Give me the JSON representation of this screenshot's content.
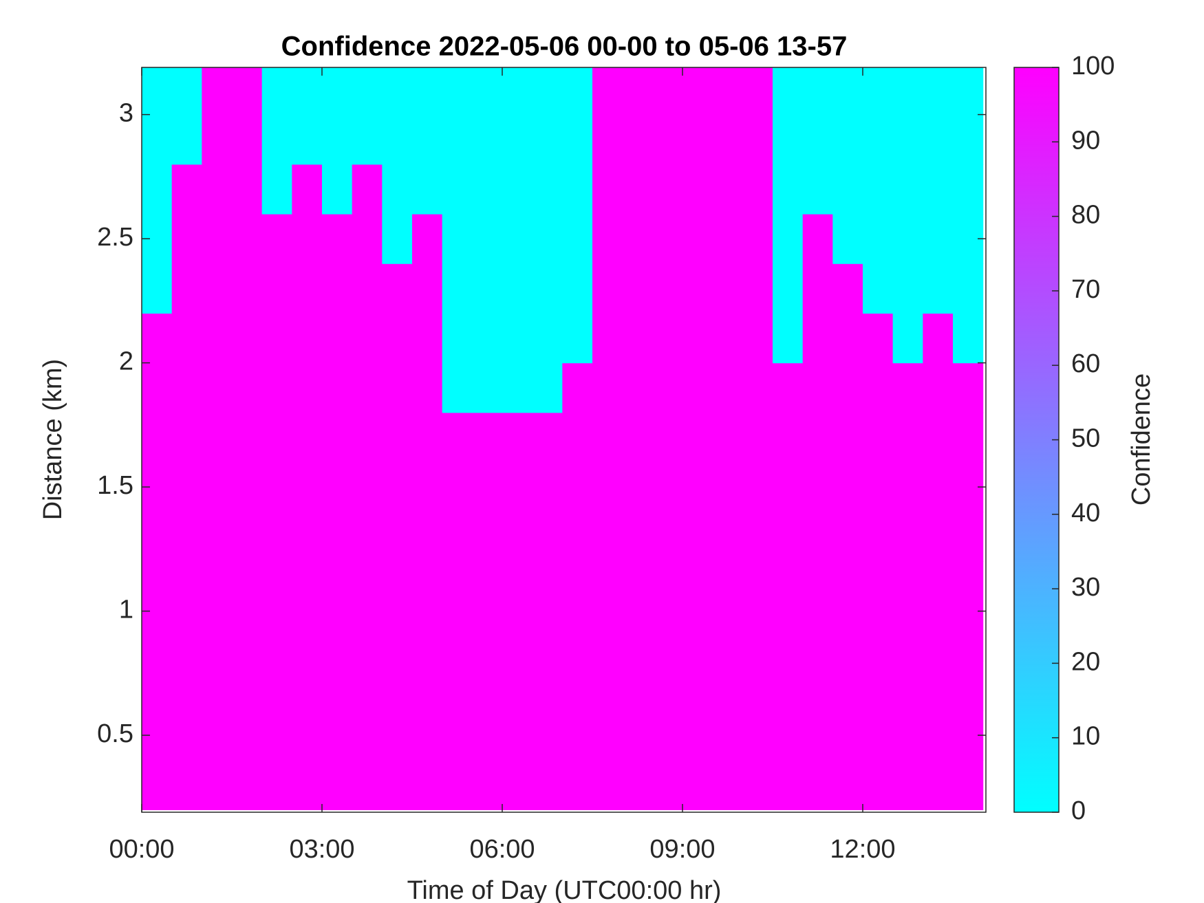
{
  "chart_data": {
    "type": "heatmap",
    "title": "Confidence 2022-05-06 00-00 to 05-06 13-57",
    "x_label": "Time of Day (UTC00:00 hr)",
    "y_label": "Distance (km)",
    "colorbar_label": "Confidence",
    "x_bins": [
      0,
      0.5,
      1,
      1.5,
      2,
      2.5,
      3,
      3.5,
      4,
      4.5,
      5,
      5.5,
      6,
      6.5,
      7,
      7.5,
      8,
      8.5,
      9,
      9.5,
      10,
      10.5,
      11,
      11.5,
      12,
      12.5,
      13,
      13.5,
      14
    ],
    "y_bins": [
      0.2,
      0.4,
      0.6,
      0.8,
      1,
      1.2,
      1.4,
      1.6,
      1.8,
      2,
      2.2,
      2.4,
      2.6,
      2.8,
      3,
      3.2
    ],
    "z": [
      [
        100,
        100,
        100,
        100,
        100,
        100,
        100,
        100,
        100,
        100,
        100,
        100,
        100,
        100,
        100,
        100,
        100,
        100,
        100,
        100,
        100,
        100,
        100,
        100,
        100,
        100,
        100,
        100
      ],
      [
        100,
        100,
        100,
        100,
        100,
        100,
        100,
        100,
        100,
        100,
        100,
        100,
        100,
        100,
        100,
        100,
        100,
        100,
        100,
        100,
        100,
        100,
        100,
        100,
        100,
        100,
        100,
        100
      ],
      [
        100,
        100,
        100,
        100,
        100,
        100,
        100,
        100,
        100,
        100,
        100,
        100,
        100,
        100,
        100,
        100,
        100,
        100,
        100,
        100,
        100,
        100,
        100,
        100,
        100,
        100,
        100,
        100
      ],
      [
        100,
        100,
        100,
        100,
        100,
        100,
        100,
        100,
        100,
        100,
        100,
        100,
        100,
        100,
        100,
        100,
        100,
        100,
        100,
        100,
        100,
        100,
        100,
        100,
        100,
        100,
        100,
        100
      ],
      [
        100,
        100,
        100,
        100,
        100,
        100,
        100,
        100,
        100,
        100,
        100,
        100,
        100,
        100,
        100,
        100,
        100,
        100,
        100,
        100,
        100,
        100,
        100,
        100,
        100,
        100,
        100,
        100
      ],
      [
        100,
        100,
        100,
        100,
        100,
        100,
        100,
        100,
        100,
        100,
        100,
        100,
        100,
        100,
        100,
        100,
        100,
        100,
        100,
        100,
        100,
        100,
        100,
        100,
        100,
        100,
        100,
        100
      ],
      [
        100,
        100,
        100,
        100,
        100,
        100,
        100,
        100,
        100,
        100,
        100,
        100,
        100,
        100,
        100,
        100,
        100,
        100,
        100,
        100,
        100,
        100,
        100,
        100,
        100,
        100,
        100,
        100
      ],
      [
        100,
        100,
        100,
        100,
        100,
        100,
        100,
        100,
        100,
        100,
        100,
        100,
        100,
        100,
        100,
        100,
        100,
        100,
        100,
        100,
        100,
        100,
        100,
        100,
        100,
        100,
        100,
        100
      ],
      [
        100,
        100,
        100,
        100,
        100,
        100,
        100,
        100,
        100,
        100,
        0,
        0,
        0,
        0,
        100,
        100,
        100,
        100,
        100,
        100,
        100,
        100,
        100,
        100,
        100,
        100,
        100,
        100
      ],
      [
        100,
        100,
        100,
        100,
        100,
        100,
        100,
        100,
        100,
        100,
        0,
        0,
        0,
        0,
        0,
        100,
        100,
        100,
        100,
        100,
        100,
        0,
        100,
        100,
        100,
        0,
        100,
        0
      ],
      [
        0,
        100,
        100,
        100,
        100,
        100,
        100,
        100,
        100,
        100,
        0,
        0,
        0,
        0,
        0,
        100,
        100,
        100,
        100,
        100,
        100,
        0,
        100,
        100,
        0,
        0,
        0,
        0
      ],
      [
        0,
        100,
        100,
        100,
        100,
        100,
        100,
        100,
        0,
        100,
        0,
        0,
        0,
        0,
        0,
        100,
        100,
        100,
        100,
        100,
        100,
        0,
        100,
        0,
        0,
        0,
        0,
        0
      ],
      [
        0,
        100,
        100,
        100,
        0,
        100,
        0,
        100,
        0,
        0,
        0,
        0,
        0,
        0,
        0,
        100,
        100,
        100,
        100,
        100,
        100,
        0,
        0,
        0,
        0,
        0,
        0,
        0
      ],
      [
        0,
        0,
        100,
        100,
        0,
        0,
        0,
        0,
        0,
        0,
        0,
        0,
        0,
        0,
        0,
        100,
        100,
        100,
        100,
        100,
        100,
        0,
        0,
        0,
        0,
        0,
        0,
        0
      ],
      [
        0,
        0,
        100,
        100,
        0,
        0,
        0,
        0,
        0,
        0,
        0,
        0,
        0,
        0,
        0,
        100,
        100,
        100,
        100,
        100,
        100,
        0,
        0,
        0,
        0,
        0,
        0,
        0
      ]
    ],
    "colormap": [
      "#00ffff",
      "#ff00ff"
    ],
    "xlim": [
      0,
      14.05
    ],
    "ylim": [
      0.19,
      3.19
    ],
    "xticks": [
      {
        "value": 0,
        "label": "00:00"
      },
      {
        "value": 3,
        "label": "03:00"
      },
      {
        "value": 6,
        "label": "06:00"
      },
      {
        "value": 9,
        "label": "09:00"
      },
      {
        "value": 12,
        "label": "12:00"
      }
    ],
    "yticks": [
      0.5,
      1,
      1.5,
      2,
      2.5,
      3
    ],
    "clim": [
      0,
      100
    ],
    "cticks": [
      0,
      10,
      20,
      30,
      40,
      50,
      60,
      70,
      80,
      90,
      100
    ]
  }
}
